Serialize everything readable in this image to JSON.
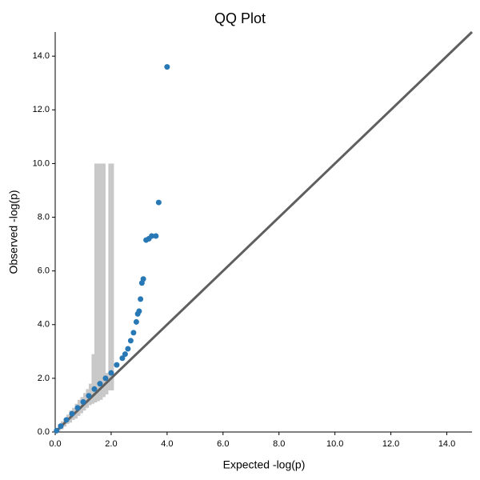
{
  "chart_data": {
    "type": "scatter",
    "title": "QQ Plot",
    "x_label": "Expected -log(p)",
    "y_label": "Observed -log(p)",
    "xlim": [
      0,
      14.9
    ],
    "ylim": [
      0,
      14.9
    ],
    "xticks": [
      {
        "value": 0,
        "label": "0.0"
      },
      {
        "value": 2,
        "label": "2.0"
      },
      {
        "value": 4,
        "label": "4.0"
      },
      {
        "value": 6,
        "label": "6.0"
      },
      {
        "value": 8,
        "label": "8.0"
      },
      {
        "value": 10,
        "label": "10.0"
      },
      {
        "value": 12,
        "label": "12.0"
      },
      {
        "value": 14,
        "label": "14.0"
      }
    ],
    "yticks": [
      {
        "value": 0,
        "label": "0.0"
      },
      {
        "value": 2,
        "label": "2.0"
      },
      {
        "value": 4,
        "label": "4.0"
      },
      {
        "value": 6,
        "label": "6.0"
      },
      {
        "value": 8,
        "label": "8.0"
      },
      {
        "value": 10,
        "label": "10.0"
      },
      {
        "value": 12,
        "label": "12.0"
      },
      {
        "value": 14,
        "label": "14.0"
      }
    ],
    "color": "#2878b5",
    "x": [
      0.05,
      0.2,
      0.4,
      0.6,
      0.8,
      1.0,
      1.2,
      1.4,
      1.6,
      1.8,
      2.0,
      2.2,
      2.4,
      2.5,
      2.6,
      2.7,
      2.8,
      2.9,
      2.95,
      3.0,
      3.05,
      3.1,
      3.15,
      3.25,
      3.35,
      3.45,
      3.6,
      3.7,
      4.0
    ],
    "values": [
      0.05,
      0.22,
      0.45,
      0.68,
      0.9,
      1.12,
      1.35,
      1.6,
      1.8,
      2.0,
      2.2,
      2.5,
      2.75,
      2.9,
      3.1,
      3.4,
      3.7,
      4.1,
      4.4,
      4.5,
      4.95,
      5.55,
      5.7,
      7.15,
      7.2,
      7.3,
      7.3,
      8.55,
      13.6
    ],
    "reference_line": {
      "color": "#5f5f5f",
      "x": [
        0,
        14.9
      ],
      "y": [
        0,
        14.9
      ]
    },
    "band": {
      "color": "#c8c8c8",
      "edges": [
        0.0,
        0.1,
        0.2,
        0.3,
        0.4,
        0.5,
        0.6,
        0.7,
        0.8,
        0.9,
        1.0,
        1.1,
        1.2,
        1.3,
        1.4,
        1.5,
        1.6,
        1.7,
        1.8,
        1.9,
        2.0,
        2.1
      ],
      "lower": [
        0,
        0.05,
        0.1,
        0.2,
        0.3,
        0.35,
        0.45,
        0.5,
        0.6,
        0.7,
        0.8,
        0.9,
        1.0,
        1.05,
        1.1,
        1.15,
        1.2,
        1.3,
        1.4,
        1.55,
        1.55
      ],
      "upper": [
        0.15,
        0.3,
        0.4,
        0.5,
        0.65,
        0.8,
        0.9,
        1.05,
        1.2,
        1.3,
        1.45,
        1.6,
        1.8,
        2.9,
        10,
        10,
        10,
        10,
        2.2,
        10,
        10
      ]
    }
  }
}
